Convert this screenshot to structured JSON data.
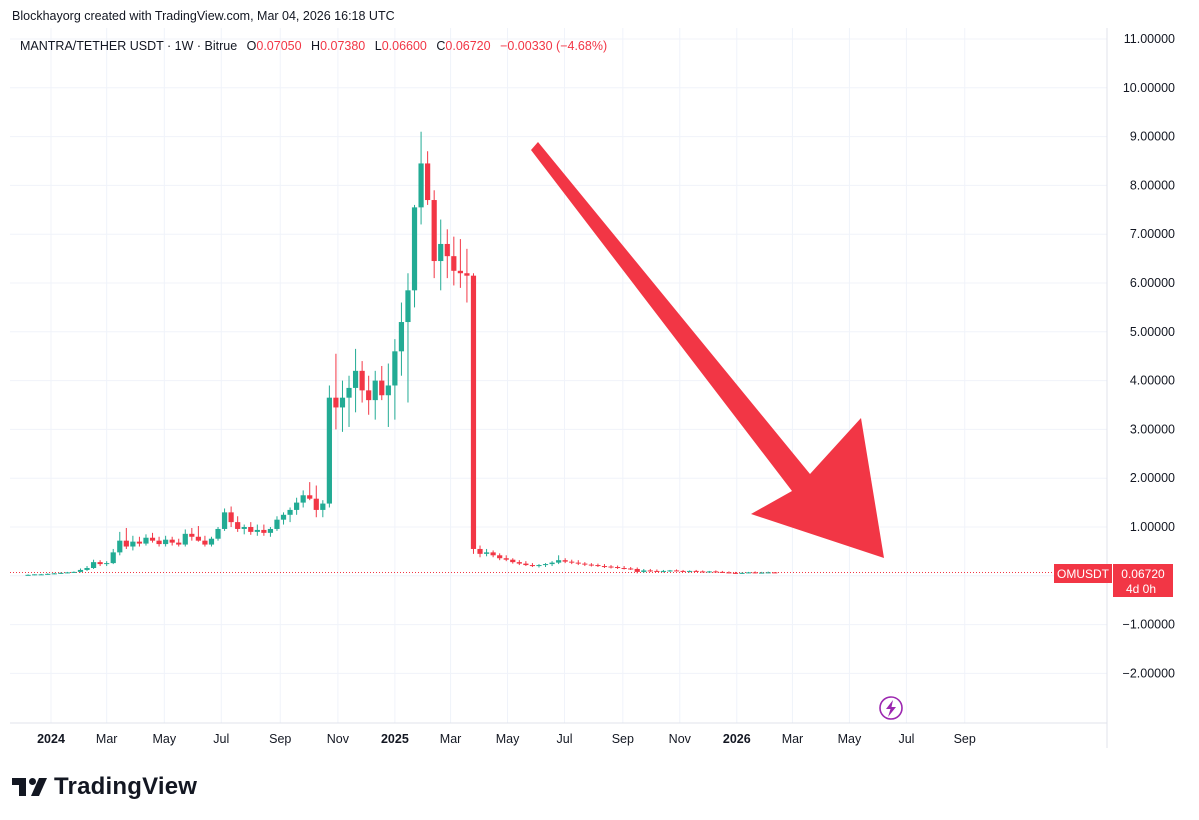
{
  "header": {
    "text": "Blockhayorg created with TradingView.com, Mar 04, 2026 16:18 UTC"
  },
  "legend": {
    "symbol": "MANTRA/TETHER USDT · 1W · Bitrue",
    "open_label": "O",
    "open": "0.07050",
    "high_label": "H",
    "high": "0.07380",
    "low_label": "L",
    "low": "0.06600",
    "close_label": "C",
    "close": "0.06720",
    "change": "−0.00330 (−4.68%)"
  },
  "price_tag": {
    "ticker": "OMUSDT",
    "price": "0.06720",
    "countdown": "4d 0h"
  },
  "brand": {
    "name": "TradingView"
  },
  "colors": {
    "up": "#22ab94",
    "down": "#f23645",
    "arrow": "#f23645",
    "grid": "#f0f3fa",
    "axis_text": "#131722",
    "lightning": "#9c27b0"
  },
  "chart_data": {
    "type": "candlestick",
    "title": "MANTRA/TETHER USDT · 1W · Bitrue",
    "ylim": [
      -2.8,
      11.2
    ],
    "y_ticks": [
      11,
      10,
      9,
      8,
      7,
      6,
      5,
      4,
      3,
      2,
      1,
      0.0672,
      -1,
      -2
    ],
    "y_tick_labels": [
      "11.00000",
      "10.00000",
      "9.00000",
      "8.00000",
      "7.00000",
      "6.00000",
      "5.00000",
      "4.00000",
      "3.00000",
      "2.00000",
      "1.00000",
      "0.06720",
      "−1.00000",
      "−2.00000"
    ],
    "x_ticks": [
      {
        "label": "2024",
        "week": 0,
        "bold": true
      },
      {
        "label": "Mar",
        "week": 8.5,
        "bold": false
      },
      {
        "label": "May",
        "week": 17.3,
        "bold": false
      },
      {
        "label": "Jul",
        "week": 26,
        "bold": false
      },
      {
        "label": "Sep",
        "week": 35,
        "bold": false
      },
      {
        "label": "Nov",
        "week": 43.8,
        "bold": false
      },
      {
        "label": "2025",
        "week": 52.5,
        "bold": true
      },
      {
        "label": "Mar",
        "week": 61,
        "bold": false
      },
      {
        "label": "May",
        "week": 69.7,
        "bold": false
      },
      {
        "label": "Jul",
        "week": 78.4,
        "bold": false
      },
      {
        "label": "Sep",
        "week": 87.3,
        "bold": false
      },
      {
        "label": "Nov",
        "week": 96,
        "bold": false
      },
      {
        "label": "2026",
        "week": 104.7,
        "bold": true
      },
      {
        "label": "Mar",
        "week": 113.2,
        "bold": false
      },
      {
        "label": "May",
        "week": 121.9,
        "bold": false
      },
      {
        "label": "Jul",
        "week": 130.6,
        "bold": false
      },
      {
        "label": "Sep",
        "week": 139.5,
        "bold": false
      }
    ],
    "candles": [
      [
        -3.5,
        0.02,
        0.03,
        0.01,
        0.02
      ],
      [
        -2.5,
        0.02,
        0.03,
        0.01,
        0.03
      ],
      [
        -1.5,
        0.03,
        0.04,
        0.02,
        0.03
      ],
      [
        -0.5,
        0.03,
        0.05,
        0.02,
        0.04
      ],
      [
        0.5,
        0.04,
        0.06,
        0.03,
        0.05
      ],
      [
        1.5,
        0.05,
        0.07,
        0.04,
        0.06
      ],
      [
        2.5,
        0.06,
        0.08,
        0.05,
        0.07
      ],
      [
        3.5,
        0.07,
        0.09,
        0.06,
        0.08
      ],
      [
        4.5,
        0.08,
        0.15,
        0.07,
        0.12
      ],
      [
        5.5,
        0.12,
        0.2,
        0.1,
        0.16
      ],
      [
        6.5,
        0.16,
        0.33,
        0.14,
        0.28
      ],
      [
        7.5,
        0.28,
        0.32,
        0.2,
        0.24
      ],
      [
        8.5,
        0.24,
        0.3,
        0.2,
        0.26
      ],
      [
        9.5,
        0.26,
        0.55,
        0.24,
        0.48
      ],
      [
        10.5,
        0.48,
        0.9,
        0.42,
        0.72
      ],
      [
        11.5,
        0.72,
        0.98,
        0.55,
        0.6
      ],
      [
        12.5,
        0.6,
        0.82,
        0.52,
        0.7
      ],
      [
        13.5,
        0.7,
        0.8,
        0.6,
        0.66
      ],
      [
        14.5,
        0.66,
        0.85,
        0.62,
        0.78
      ],
      [
        15.5,
        0.78,
        0.88,
        0.68,
        0.72
      ],
      [
        16.5,
        0.72,
        0.8,
        0.6,
        0.65
      ],
      [
        17.5,
        0.65,
        0.82,
        0.6,
        0.74
      ],
      [
        18.5,
        0.74,
        0.8,
        0.62,
        0.68
      ],
      [
        19.5,
        0.68,
        0.76,
        0.6,
        0.64
      ],
      [
        20.5,
        0.64,
        0.95,
        0.6,
        0.86
      ],
      [
        21.5,
        0.86,
        0.98,
        0.72,
        0.8
      ],
      [
        22.5,
        0.8,
        1.02,
        0.7,
        0.72
      ],
      [
        23.5,
        0.72,
        0.82,
        0.6,
        0.64
      ],
      [
        24.5,
        0.64,
        0.8,
        0.6,
        0.76
      ],
      [
        25.5,
        0.76,
        1.0,
        0.72,
        0.96
      ],
      [
        26.5,
        0.96,
        1.38,
        0.92,
        1.3
      ],
      [
        27.5,
        1.3,
        1.42,
        1.0,
        1.1
      ],
      [
        28.5,
        1.1,
        1.22,
        0.9,
        0.96
      ],
      [
        29.5,
        0.96,
        1.05,
        0.85,
        1.0
      ],
      [
        30.5,
        1.0,
        1.1,
        0.84,
        0.9
      ],
      [
        31.5,
        0.9,
        1.05,
        0.82,
        0.94
      ],
      [
        32.5,
        0.94,
        1.05,
        0.82,
        0.88
      ],
      [
        33.5,
        0.88,
        1.0,
        0.8,
        0.96
      ],
      [
        34.5,
        0.96,
        1.22,
        0.92,
        1.15
      ],
      [
        35.5,
        1.15,
        1.3,
        1.05,
        1.25
      ],
      [
        36.5,
        1.25,
        1.4,
        1.1,
        1.35
      ],
      [
        37.5,
        1.35,
        1.6,
        1.25,
        1.5
      ],
      [
        38.5,
        1.5,
        1.75,
        1.4,
        1.65
      ],
      [
        39.5,
        1.65,
        1.92,
        1.55,
        1.58
      ],
      [
        40.5,
        1.58,
        1.85,
        1.2,
        1.35
      ],
      [
        41.5,
        1.35,
        1.55,
        1.2,
        1.48
      ],
      [
        42.5,
        1.48,
        3.9,
        1.4,
        3.65
      ],
      [
        43.5,
        3.65,
        4.55,
        3.0,
        3.45
      ],
      [
        44.5,
        3.45,
        4.0,
        2.95,
        3.65
      ],
      [
        45.5,
        3.65,
        4.1,
        3.05,
        3.85
      ],
      [
        46.5,
        3.85,
        4.65,
        3.35,
        4.2
      ],
      [
        47.5,
        4.2,
        4.4,
        3.55,
        3.8
      ],
      [
        48.5,
        3.8,
        4.1,
        3.3,
        3.6
      ],
      [
        49.5,
        3.6,
        4.2,
        3.2,
        4.0
      ],
      [
        50.5,
        4.0,
        4.3,
        3.6,
        3.7
      ],
      [
        51.5,
        3.7,
        4.35,
        3.05,
        3.9
      ],
      [
        52.5,
        3.9,
        4.85,
        3.2,
        4.6
      ],
      [
        53.5,
        4.6,
        5.6,
        4.1,
        5.2
      ],
      [
        54.5,
        5.2,
        6.2,
        3.55,
        5.85
      ],
      [
        55.5,
        5.85,
        7.6,
        5.5,
        7.55
      ],
      [
        56.5,
        7.55,
        9.1,
        7.2,
        8.45
      ],
      [
        57.5,
        8.45,
        8.7,
        7.6,
        7.7
      ],
      [
        58.5,
        7.7,
        7.9,
        6.1,
        6.45
      ],
      [
        59.5,
        6.45,
        7.3,
        5.85,
        6.8
      ],
      [
        60.5,
        6.8,
        7.1,
        6.1,
        6.55
      ],
      [
        61.5,
        6.55,
        6.95,
        5.95,
        6.25
      ],
      [
        62.5,
        6.25,
        6.9,
        5.9,
        6.2
      ],
      [
        63.5,
        6.2,
        6.7,
        5.6,
        6.15
      ],
      [
        64.5,
        6.15,
        6.2,
        0.45,
        0.55
      ],
      [
        65.5,
        0.55,
        0.62,
        0.38,
        0.45
      ],
      [
        66.5,
        0.45,
        0.55,
        0.4,
        0.48
      ],
      [
        67.5,
        0.48,
        0.52,
        0.38,
        0.42
      ],
      [
        68.5,
        0.42,
        0.46,
        0.32,
        0.36
      ],
      [
        69.5,
        0.36,
        0.42,
        0.3,
        0.33
      ],
      [
        70.5,
        0.33,
        0.36,
        0.25,
        0.28
      ],
      [
        71.5,
        0.28,
        0.32,
        0.22,
        0.25
      ],
      [
        72.5,
        0.25,
        0.3,
        0.2,
        0.22
      ],
      [
        73.5,
        0.22,
        0.26,
        0.18,
        0.2
      ],
      [
        74.5,
        0.2,
        0.24,
        0.17,
        0.22
      ],
      [
        75.5,
        0.22,
        0.26,
        0.18,
        0.24
      ],
      [
        76.5,
        0.24,
        0.3,
        0.2,
        0.27
      ],
      [
        77.5,
        0.27,
        0.42,
        0.24,
        0.32
      ],
      [
        78.5,
        0.32,
        0.36,
        0.26,
        0.29
      ],
      [
        79.5,
        0.29,
        0.33,
        0.24,
        0.27
      ],
      [
        80.5,
        0.27,
        0.32,
        0.22,
        0.25
      ],
      [
        81.5,
        0.25,
        0.28,
        0.2,
        0.23
      ],
      [
        82.5,
        0.23,
        0.26,
        0.19,
        0.22
      ],
      [
        83.5,
        0.22,
        0.25,
        0.18,
        0.2
      ],
      [
        84.5,
        0.2,
        0.24,
        0.16,
        0.19
      ],
      [
        85.5,
        0.19,
        0.22,
        0.15,
        0.18
      ],
      [
        86.5,
        0.18,
        0.21,
        0.14,
        0.16
      ],
      [
        87.5,
        0.16,
        0.2,
        0.13,
        0.15
      ],
      [
        88.5,
        0.15,
        0.18,
        0.12,
        0.14
      ],
      [
        89.5,
        0.14,
        0.17,
        0.05,
        0.08
      ],
      [
        90.5,
        0.08,
        0.14,
        0.06,
        0.11
      ],
      [
        91.5,
        0.11,
        0.14,
        0.08,
        0.1
      ],
      [
        92.5,
        0.1,
        0.13,
        0.08,
        0.09
      ],
      [
        93.5,
        0.09,
        0.12,
        0.07,
        0.1
      ],
      [
        94.5,
        0.1,
        0.12,
        0.08,
        0.11
      ],
      [
        95.5,
        0.11,
        0.13,
        0.09,
        0.1
      ],
      [
        96.5,
        0.1,
        0.12,
        0.08,
        0.09
      ],
      [
        97.5,
        0.09,
        0.11,
        0.07,
        0.1
      ],
      [
        98.5,
        0.1,
        0.12,
        0.08,
        0.09
      ],
      [
        99.5,
        0.09,
        0.11,
        0.07,
        0.08
      ],
      [
        100.5,
        0.08,
        0.1,
        0.06,
        0.09
      ],
      [
        101.5,
        0.09,
        0.11,
        0.07,
        0.08
      ],
      [
        102.5,
        0.08,
        0.1,
        0.06,
        0.07
      ],
      [
        103.5,
        0.07,
        0.09,
        0.05,
        0.06
      ],
      [
        104.5,
        0.06,
        0.08,
        0.04,
        0.05
      ],
      [
        105.5,
        0.05,
        0.07,
        0.04,
        0.06
      ],
      [
        106.5,
        0.06,
        0.08,
        0.05,
        0.07
      ],
      [
        107.5,
        0.07,
        0.09,
        0.05,
        0.06
      ],
      [
        108.5,
        0.06,
        0.08,
        0.05,
        0.065
      ],
      [
        109.5,
        0.065,
        0.085,
        0.055,
        0.07
      ],
      [
        110.5,
        0.07,
        0.0738,
        0.066,
        0.0672
      ]
    ],
    "candle_format": [
      "week",
      "open",
      "high",
      "low",
      "close"
    ],
    "last_price": 0.0672,
    "annotation": "red downward arrow from the peak toward the current price"
  }
}
